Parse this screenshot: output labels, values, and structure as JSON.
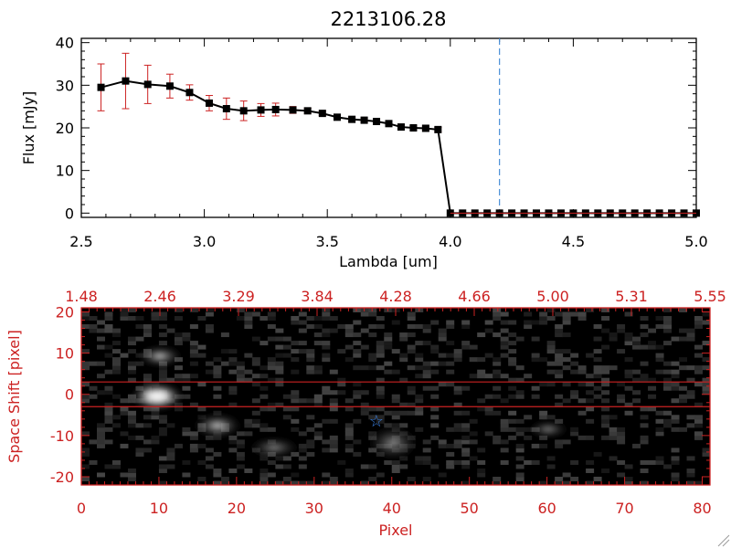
{
  "title": "2213106.28",
  "colors": {
    "axis": "#000000",
    "red": "#cc2222",
    "dashed": "#4a8fd8",
    "marker": "#000000",
    "star": "#3a7fe0"
  },
  "chart_data": [
    {
      "type": "line",
      "xlabel": "Lambda [um]",
      "ylabel": "Flux [mJy]",
      "xlim": [
        2.5,
        5.0
      ],
      "ylim": [
        -1,
        41
      ],
      "xticks": [
        "2.5",
        "3.0",
        "3.5",
        "4.0",
        "4.5",
        "5.0"
      ],
      "yticks": [
        "0",
        "10",
        "20",
        "30",
        "40"
      ],
      "vline_x": 4.2,
      "series": [
        {
          "x": [
            2.58,
            2.68,
            2.77,
            2.86,
            2.94,
            3.02,
            3.09,
            3.16,
            3.23,
            3.29,
            3.36,
            3.42,
            3.48,
            3.54,
            3.6,
            3.65,
            3.7,
            3.75,
            3.8,
            3.85,
            3.9,
            3.95,
            4.0,
            4.05,
            4.1,
            4.15,
            4.2,
            4.25,
            4.3,
            4.35,
            4.4,
            4.45,
            4.5,
            4.55,
            4.6,
            4.65,
            4.7,
            4.75,
            4.8,
            4.85,
            4.9,
            4.95,
            5.0
          ],
          "y": [
            29.5,
            31.0,
            30.2,
            29.8,
            28.3,
            25.8,
            24.5,
            24.0,
            24.2,
            24.3,
            24.2,
            24.0,
            23.4,
            22.5,
            22.0,
            21.8,
            21.5,
            21.0,
            20.2,
            20.0,
            19.9,
            19.6,
            0,
            0,
            0,
            0,
            0,
            0,
            0,
            0,
            0,
            0,
            0,
            0,
            0,
            0,
            0,
            0,
            0,
            0,
            0,
            0,
            0
          ],
          "err": [
            5.5,
            6.5,
            4.5,
            2.8,
            1.8,
            1.8,
            2.5,
            2.3,
            1.5,
            1.5,
            0.8,
            0.6,
            0.5,
            0.5,
            0.5,
            0.5,
            0.5,
            0.5,
            0.5,
            0.5,
            0.5,
            0.5,
            0,
            0,
            0,
            0,
            0,
            0,
            0,
            0,
            0,
            0,
            0,
            0,
            0,
            0,
            0,
            0,
            0,
            0,
            0,
            0,
            0
          ]
        }
      ]
    },
    {
      "type": "heatmap",
      "xlabel": "Pixel",
      "ylabel": "Space Shift [pixel]",
      "xlim": [
        0,
        81
      ],
      "ylim": [
        -22,
        21
      ],
      "xticks": [
        "0",
        "10",
        "20",
        "30",
        "40",
        "50",
        "60",
        "70",
        "80"
      ],
      "yticks": [
        "-20",
        "-10",
        "0",
        "10",
        "20"
      ],
      "top_ticks": [
        "1.48",
        "2.46",
        "3.29",
        "3.84",
        "4.28",
        "4.66",
        "5.00",
        "5.31",
        "5.55"
      ],
      "hlines_y": [
        3,
        -3
      ],
      "star": {
        "x": 38,
        "y": -6.5
      }
    }
  ]
}
